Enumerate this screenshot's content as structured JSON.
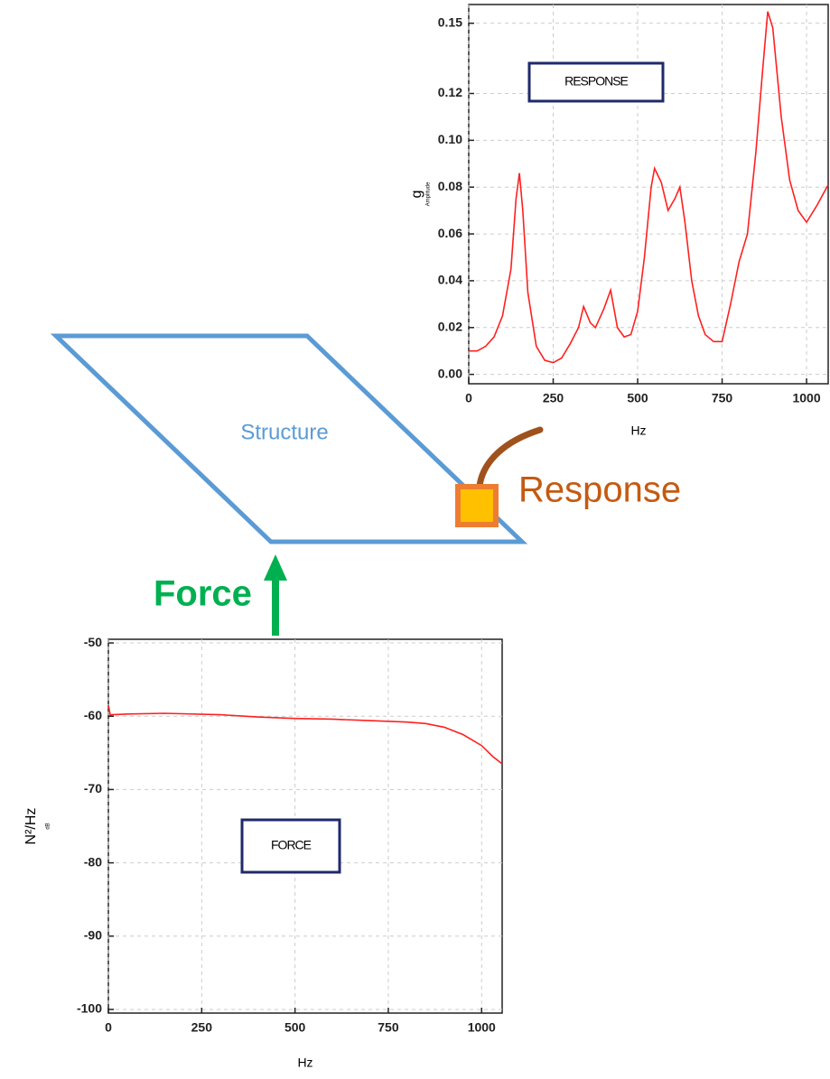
{
  "chart_data": [
    {
      "type": "line",
      "annotation": "RESPONSE",
      "x_label": "Hz",
      "y_label": "g",
      "y_sublabel": "Amplitude",
      "color": "#ff2020",
      "grid": true,
      "x": [
        0,
        25,
        50,
        75,
        100,
        125,
        140,
        150,
        160,
        175,
        200,
        225,
        250,
        275,
        300,
        325,
        340,
        360,
        375,
        400,
        420,
        440,
        460,
        480,
        500,
        520,
        540,
        550,
        570,
        590,
        610,
        625,
        640,
        660,
        680,
        700,
        725,
        750,
        775,
        800,
        825,
        850,
        870,
        885,
        900,
        925,
        950,
        975,
        1000,
        1030,
        1064
      ],
      "values": [
        0.01,
        0.01,
        0.012,
        0.016,
        0.025,
        0.045,
        0.075,
        0.086,
        0.07,
        0.035,
        0.012,
        0.006,
        0.005,
        0.007,
        0.013,
        0.02,
        0.029,
        0.022,
        0.02,
        0.028,
        0.036,
        0.02,
        0.016,
        0.017,
        0.027,
        0.05,
        0.08,
        0.088,
        0.082,
        0.07,
        0.075,
        0.08,
        0.065,
        0.04,
        0.025,
        0.017,
        0.014,
        0.014,
        0.03,
        0.048,
        0.06,
        0.095,
        0.13,
        0.155,
        0.148,
        0.11,
        0.083,
        0.07,
        0.065,
        0.072,
        0.081
      ],
      "xlim": [
        0,
        1064
      ],
      "xticks": [
        0,
        250,
        500,
        750,
        1000
      ],
      "ylim": [
        -0.004,
        0.158
      ],
      "yticks": [
        {
          "value": 0,
          "label": "0.00"
        },
        0.02,
        0.04,
        0.06,
        0.08,
        {
          "value": 0.1,
          "label": "0.10"
        },
        0.12,
        0.15
      ]
    },
    {
      "type": "line",
      "annotation": "FORCE",
      "x_label": "Hz",
      "y_label": "N²/Hz",
      "y_sublabel": "dB",
      "color": "#ff2020",
      "grid": true,
      "x": [
        0,
        5,
        50,
        150,
        300,
        400,
        500,
        600,
        700,
        800,
        850,
        900,
        950,
        1000,
        1030,
        1055
      ],
      "values": [
        -58.5,
        -59.8,
        -59.7,
        -59.6,
        -59.8,
        -60.1,
        -60.3,
        -60.4,
        -60.6,
        -60.8,
        -61.0,
        -61.5,
        -62.5,
        -64.0,
        -65.5,
        -66.5
      ],
      "xlim": [
        0,
        1055
      ],
      "xticks": [
        0,
        250,
        500,
        750,
        1000
      ],
      "ylim": [
        -100.5,
        -49.5
      ],
      "yticks": [
        -50,
        -60,
        -70,
        -80,
        -90,
        -100
      ]
    }
  ],
  "diagram": {
    "structure_label": "Structure",
    "response_label": "Response",
    "force_label": "Force"
  }
}
